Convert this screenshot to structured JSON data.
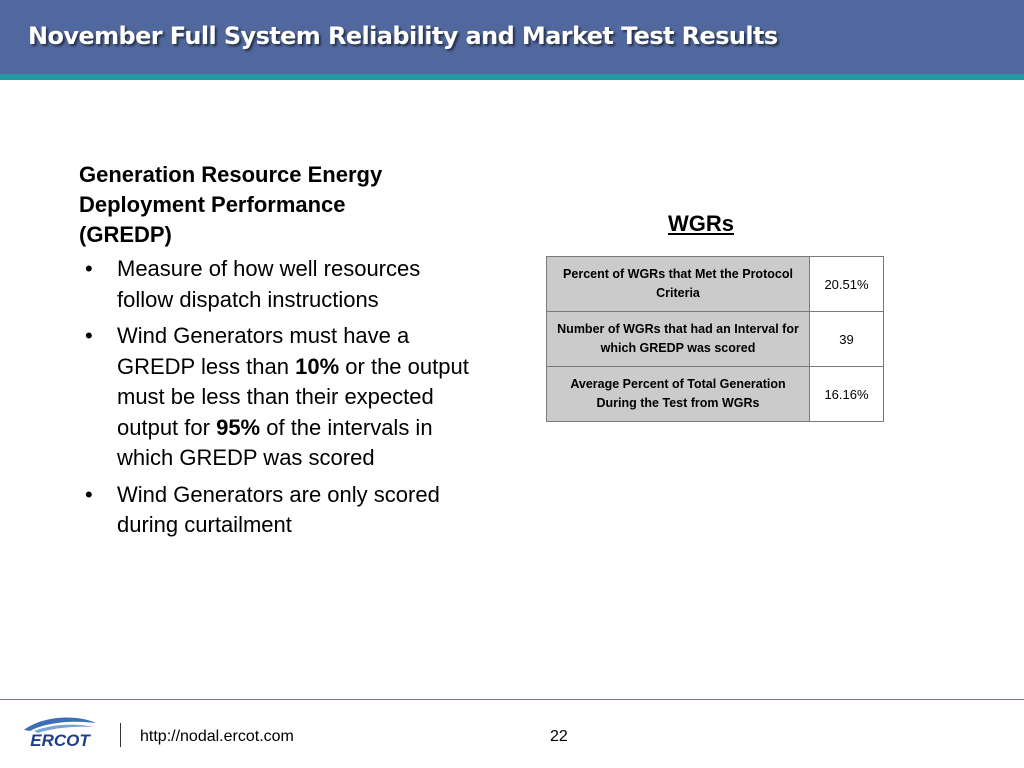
{
  "header": {
    "title": "November Full System Reliability and Market Test Results",
    "background_color": "#51689e",
    "stripe_color": "#1e9aa0"
  },
  "content": {
    "section_title_line1": "Generation Resource Energy",
    "section_title_line2": "Deployment Performance",
    "section_title_line3": "(GREDP)",
    "bullet_symbol": "•",
    "bullet1": "Measure of how well resources follow dispatch instructions",
    "bullet2_part1": "Wind Generators must have a GREDP less than ",
    "bullet2_bold1": "10%",
    "bullet2_part2": " or the output must be less than their expected output for ",
    "bullet2_bold2": "95%",
    "bullet2_part3": " of the intervals in which GREDP was scored",
    "bullet3": "Wind Generators are only scored during curtailment"
  },
  "table": {
    "heading": "WGRs",
    "rows": [
      {
        "label": "Percent of WGRs that Met the Protocol Criteria",
        "value": "20.51%"
      },
      {
        "label": "Number of WGRs that had an Interval for which GREDP was scored",
        "value": "39"
      },
      {
        "label": "Average Percent of Total Generation During the Test from WGRs",
        "value": "16.16%"
      }
    ]
  },
  "footer": {
    "logo_text": "ERCOT",
    "url": "http://nodal.ercot.com",
    "page_number": "22"
  }
}
